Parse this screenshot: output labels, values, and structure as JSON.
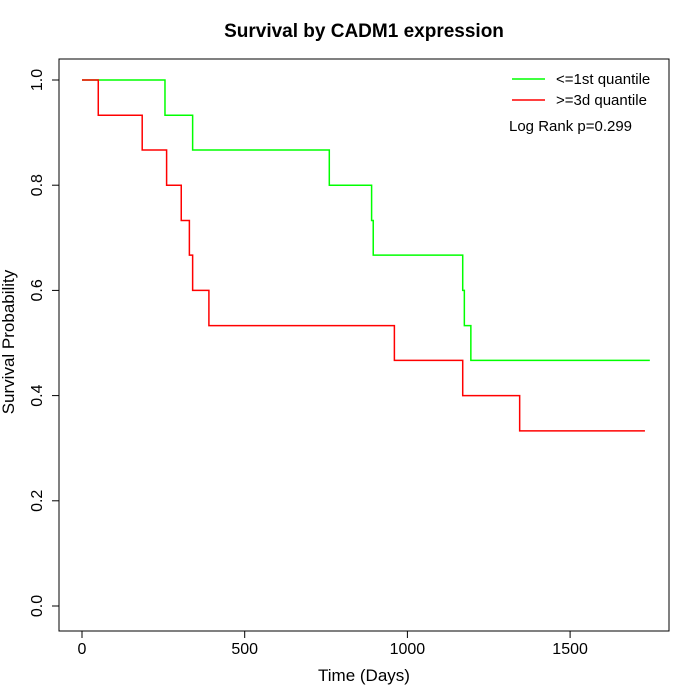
{
  "chart_data": {
    "type": "line",
    "subtype": "step",
    "title": "Survival by CADM1 expression",
    "xlabel": "Time (Days)",
    "ylabel": "Survival Probability",
    "xlim": [
      0,
      1800
    ],
    "ylim": [
      0,
      1
    ],
    "x_ticks": [
      0,
      500,
      1000,
      1500
    ],
    "y_ticks": [
      0.0,
      0.2,
      0.4,
      0.6,
      0.8,
      1.0
    ],
    "x_tick_labels": [
      "0",
      "500",
      "1000",
      "1500"
    ],
    "y_tick_labels": [
      "0.0",
      "0.2",
      "0.4",
      "0.6",
      "0.8",
      "1.0"
    ],
    "grid": false,
    "legend_position": "top-right",
    "annotation": "Log Rank p=0.299",
    "series": [
      {
        "name": "<=1st quantile",
        "color": "#00ff00",
        "x": [
          0,
          255,
          340,
          760,
          890,
          895,
          1170,
          1175,
          1185,
          1195,
          1745
        ],
        "y": [
          1.0,
          0.933,
          0.867,
          0.8,
          0.733,
          0.667,
          0.6,
          0.533,
          0.533,
          0.467,
          0.467
        ]
      },
      {
        "name": ">=3d quantile",
        "color": "#ff0000",
        "x": [
          0,
          50,
          185,
          260,
          305,
          330,
          340,
          390,
          960,
          1170,
          1345,
          1730
        ],
        "y": [
          1.0,
          0.933,
          0.867,
          0.8,
          0.733,
          0.667,
          0.6,
          0.533,
          0.467,
          0.4,
          0.333,
          0.333
        ]
      }
    ]
  }
}
